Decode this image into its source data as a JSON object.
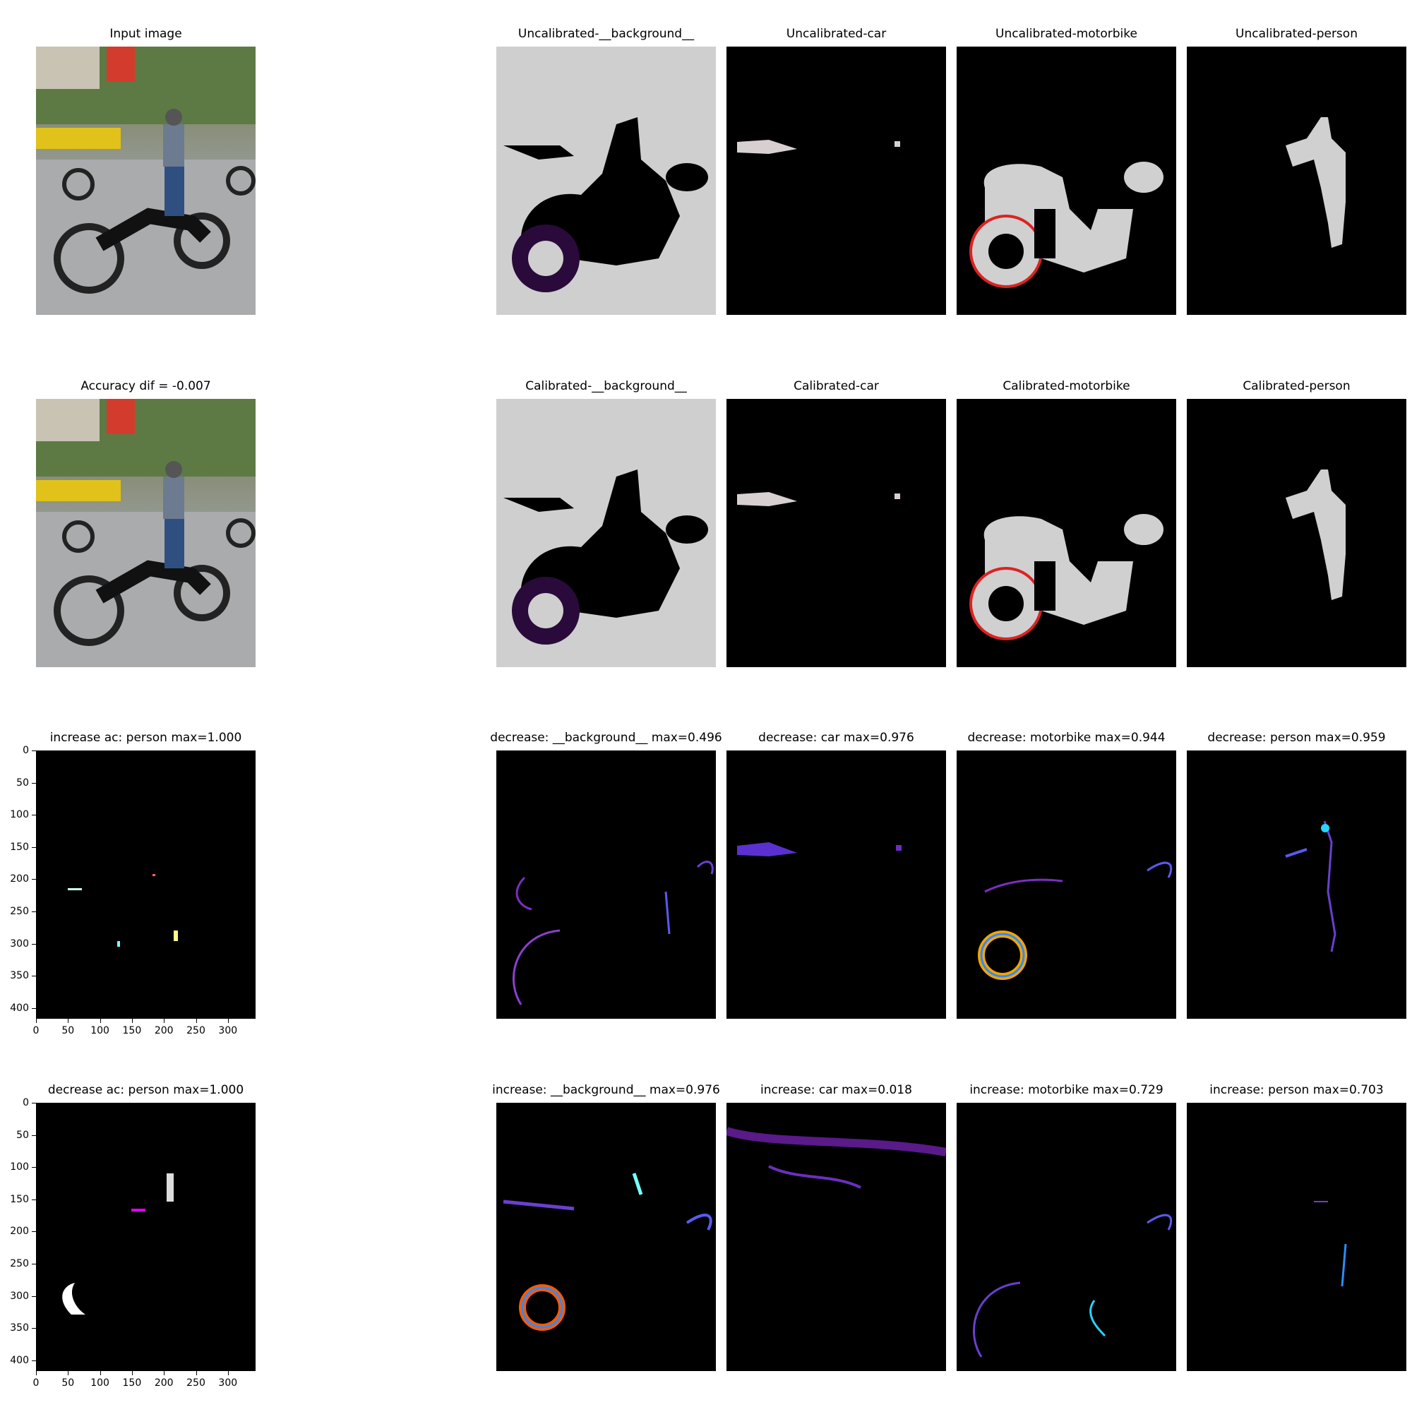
{
  "row1": {
    "input": "Input image",
    "bg": "Uncalibrated-__background__",
    "car": "Uncalibrated-car",
    "motorbike": "Uncalibrated-motorbike",
    "person": "Uncalibrated-person"
  },
  "row2": {
    "acc": "Accuracy dif = -0.007",
    "bg": "Calibrated-__background__",
    "car": "Calibrated-car",
    "motorbike": "Calibrated-motorbike",
    "person": "Calibrated-person"
  },
  "row3": {
    "ac": "increase ac: person max=1.000",
    "bg": "decrease: __background__ max=0.496",
    "car": "decrease: car max=0.976",
    "motorbike": "decrease: motorbike max=0.944",
    "person": "decrease: person max=0.959"
  },
  "row4": {
    "ac": "decrease ac: person max=1.000",
    "bg": "increase: __background__ max=0.976",
    "car": "increase: car max=0.018",
    "motorbike": "increase: motorbike max=0.729",
    "person": "increase: person max=0.703"
  },
  "axes": {
    "y_ticks": [
      "0",
      "50",
      "100",
      "150",
      "200",
      "250",
      "300",
      "350",
      "400"
    ],
    "x_ticks": [
      "0",
      "50",
      "100",
      "150",
      "200",
      "250",
      "300"
    ]
  }
}
